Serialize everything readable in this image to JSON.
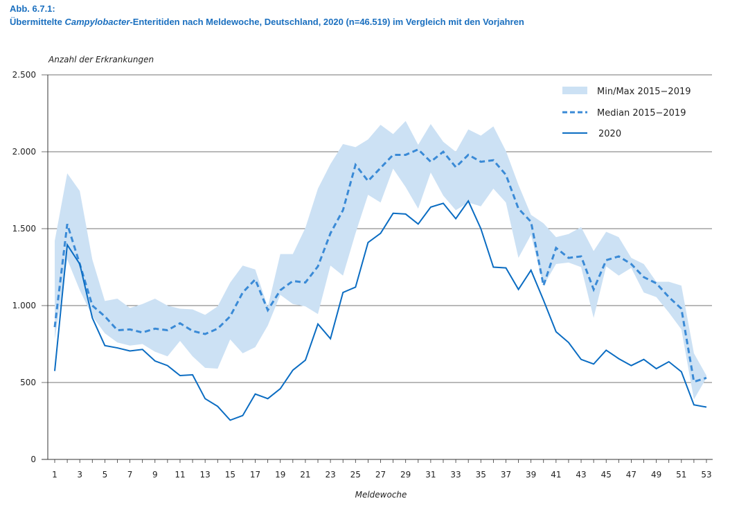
{
  "figure": {
    "label": "Abb. 6.7.1:",
    "title_prefix": "Übermittelte ",
    "title_italic": "Campylobacter",
    "title_suffix": "-Enteritiden nach Meldewoche, Deutschland, 2020 (n=46.519) im Vergleich mit den Vorjahren"
  },
  "chart_data": {
    "type": "line",
    "ylabel": "Anzahl der Erkrankungen",
    "xlabel": "Meldewoche",
    "ylim": [
      0,
      2500
    ],
    "xlim": [
      1,
      53
    ],
    "grid": true,
    "legend_position": "top-right",
    "y_ticks": [
      0,
      500,
      1000,
      1500,
      2000,
      2500
    ],
    "y_tick_labels": [
      "0",
      "500",
      "1.000",
      "1.500",
      "2.000",
      "2.500"
    ],
    "x_tick_labels": [
      "1",
      "3",
      "5",
      "7",
      "9",
      "11",
      "13",
      "15",
      "17",
      "19",
      "21",
      "23",
      "25",
      "27",
      "29",
      "31",
      "33",
      "35",
      "37",
      "39",
      "41",
      "43",
      "45",
      "47",
      "49",
      "51",
      "53"
    ],
    "x": [
      1,
      2,
      3,
      4,
      5,
      6,
      7,
      8,
      9,
      10,
      11,
      12,
      13,
      14,
      15,
      16,
      17,
      18,
      19,
      20,
      21,
      22,
      23,
      24,
      25,
      26,
      27,
      28,
      29,
      30,
      31,
      32,
      33,
      34,
      35,
      36,
      37,
      38,
      39,
      40,
      41,
      42,
      43,
      44,
      45,
      46,
      47,
      48,
      49,
      50,
      51,
      52,
      53
    ],
    "colors": {
      "band": "#cce1f4",
      "median": "#3a8ad6",
      "current": "#0a6cc2"
    },
    "series": [
      {
        "name": "Min/Max 2015−2019",
        "kind": "band",
        "min": [
          780,
          1300,
          1100,
          930,
          820,
          760,
          740,
          750,
          700,
          670,
          770,
          670,
          595,
          590,
          780,
          690,
          730,
          870,
          1070,
          1010,
          995,
          945,
          1260,
          1195,
          1470,
          1720,
          1670,
          1890,
          1770,
          1630,
          1865,
          1715,
          1620,
          1670,
          1645,
          1760,
          1670,
          1310,
          1460,
          1130,
          1270,
          1280,
          1250,
          920,
          1255,
          1195,
          1245,
          1085,
          1055,
          955,
          845,
          390,
          530
        ],
        "max": [
          1420,
          1860,
          1745,
          1300,
          1030,
          1045,
          985,
          1010,
          1045,
          1000,
          980,
          975,
          940,
          995,
          1150,
          1260,
          1235,
          990,
          1335,
          1335,
          1505,
          1760,
          1920,
          2050,
          2030,
          2080,
          2175,
          2115,
          2200,
          2045,
          2180,
          2065,
          2000,
          2145,
          2105,
          2165,
          2005,
          1785,
          1590,
          1535,
          1445,
          1465,
          1510,
          1355,
          1480,
          1445,
          1310,
          1270,
          1155,
          1155,
          1130,
          690,
          545
        ]
      },
      {
        "name": "Median 2015−2019",
        "kind": "dashed",
        "values": [
          860,
          1530,
          1270,
          1000,
          930,
          840,
          845,
          825,
          850,
          840,
          885,
          835,
          815,
          850,
          930,
          1085,
          1170,
          970,
          1100,
          1160,
          1150,
          1255,
          1470,
          1620,
          1915,
          1810,
          1895,
          1980,
          1980,
          2015,
          1935,
          2000,
          1900,
          1980,
          1935,
          1945,
          1850,
          1630,
          1545,
          1130,
          1375,
          1310,
          1320,
          1105,
          1295,
          1320,
          1270,
          1185,
          1145,
          1055,
          980,
          505,
          530
        ]
      },
      {
        "name": "2020",
        "kind": "solid",
        "values": [
          575,
          1395,
          1270,
          920,
          740,
          725,
          705,
          715,
          640,
          610,
          545,
          550,
          395,
          345,
          255,
          285,
          425,
          395,
          460,
          580,
          645,
          880,
          785,
          1085,
          1120,
          1410,
          1470,
          1600,
          1595,
          1530,
          1640,
          1665,
          1565,
          1680,
          1500,
          1250,
          1245,
          1105,
          1230,
          1035,
          830,
          760,
          650,
          620,
          710,
          655,
          610,
          650,
          590,
          635,
          570,
          355,
          340
        ]
      }
    ]
  }
}
